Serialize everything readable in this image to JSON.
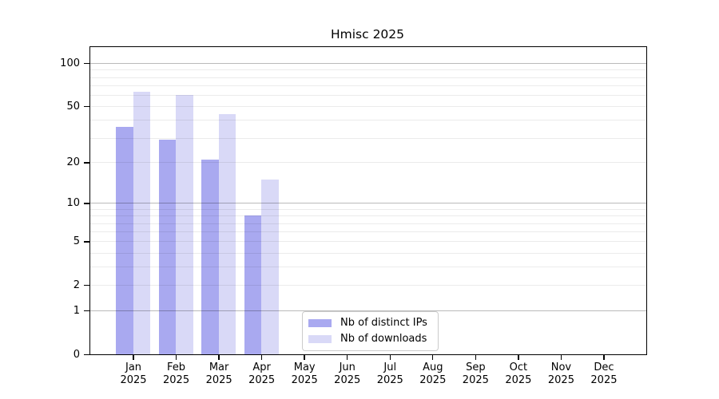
{
  "title": "Hmisc 2025",
  "chart_data": {
    "type": "bar",
    "title": "Hmisc 2025",
    "categories": [
      "Jan 2025",
      "Feb 2025",
      "Mar 2025",
      "Apr 2025",
      "May 2025",
      "Jun 2025",
      "Jul 2025",
      "Aug 2025",
      "Sep 2025",
      "Oct 2025",
      "Nov 2025",
      "Dec 2025"
    ],
    "series": [
      {
        "name": "Nb of distinct IPs",
        "color": "#a9a9f0",
        "values": [
          36,
          29,
          21,
          8,
          null,
          null,
          null,
          null,
          null,
          null,
          null,
          null
        ]
      },
      {
        "name": "Nb of downloads",
        "color": "#d9d9f7",
        "values": [
          63,
          60,
          44,
          15,
          null,
          null,
          null,
          null,
          null,
          null,
          null,
          null
        ]
      }
    ],
    "yscale": "log10(value+1)",
    "ylim": [
      0,
      127
    ],
    "ytick_labels": [
      100,
      50,
      20,
      10,
      5,
      2,
      1,
      0
    ],
    "major_gridlines": [
      1,
      10,
      100
    ],
    "minor_gridlines": [
      2,
      3,
      4,
      5,
      6,
      7,
      8,
      9,
      20,
      30,
      40,
      50,
      60,
      70,
      80,
      90
    ],
    "grid": true,
    "legend_position": "bottom-center",
    "colors": {
      "axis": "#000000",
      "grid_major": "rgba(0,0,0,0.27)",
      "grid_minor": "rgba(0,0,0,0.08)"
    }
  }
}
